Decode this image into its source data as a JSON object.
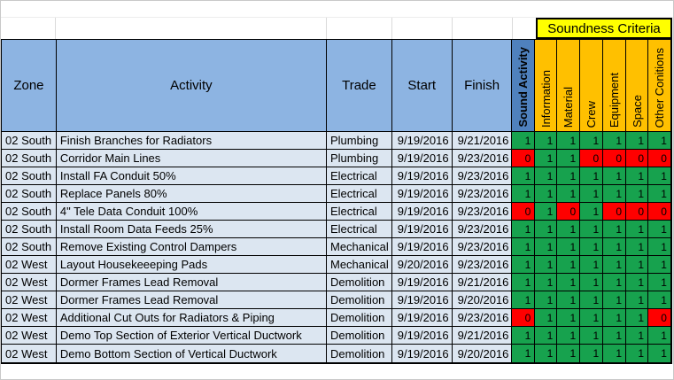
{
  "table": {
    "criteria_banner": "Soundness Criteria",
    "columns": [
      "Zone",
      "Activity",
      "Trade",
      "Start",
      "Finish"
    ],
    "criteria_columns": [
      "Sound Activity",
      "Information",
      "Material",
      "Crew",
      "Equipment",
      "Space",
      "Other Conitions"
    ],
    "rows": [
      {
        "zone": "02 South",
        "activity": "Finish Branches for Radiators",
        "trade": "Plumbing",
        "start": "9/19/2016",
        "finish": "9/21/2016",
        "criteria": [
          1,
          1,
          1,
          1,
          1,
          1,
          1
        ]
      },
      {
        "zone": "02 South",
        "activity": "Corridor Main Lines",
        "trade": "Plumbing",
        "start": "9/19/2016",
        "finish": "9/23/2016",
        "criteria": [
          0,
          1,
          1,
          0,
          0,
          0,
          0
        ]
      },
      {
        "zone": "02 South",
        "activity": "Install FA Conduit 50%",
        "trade": "Electrical",
        "start": "9/19/2016",
        "finish": "9/23/2016",
        "criteria": [
          1,
          1,
          1,
          1,
          1,
          1,
          1
        ]
      },
      {
        "zone": "02 South",
        "activity": "Replace Panels 80%",
        "trade": "Electrical",
        "start": "9/19/2016",
        "finish": "9/23/2016",
        "criteria": [
          1,
          1,
          1,
          1,
          1,
          1,
          1
        ]
      },
      {
        "zone": "02 South",
        "activity": "4\" Tele Data Conduit 100%",
        "trade": "Electrical",
        "start": "9/19/2016",
        "finish": "9/23/2016",
        "criteria": [
          0,
          1,
          0,
          1,
          0,
          0,
          0
        ]
      },
      {
        "zone": "02 South",
        "activity": "Install Room Data Feeds 25%",
        "trade": "Electrical",
        "start": "9/19/2016",
        "finish": "9/23/2016",
        "criteria": [
          1,
          1,
          1,
          1,
          1,
          1,
          1
        ]
      },
      {
        "zone": "02 South",
        "activity": "Remove Existing Control Dampers",
        "trade": "Mechanical",
        "start": "9/19/2016",
        "finish": "9/23/2016",
        "criteria": [
          1,
          1,
          1,
          1,
          1,
          1,
          1
        ]
      },
      {
        "zone": "02 West",
        "activity": "Layout Housekeeeping Pads",
        "trade": "Mechanical",
        "start": "9/20/2016",
        "finish": "9/23/2016",
        "criteria": [
          1,
          1,
          1,
          1,
          1,
          1,
          1
        ]
      },
      {
        "zone": "02 West",
        "activity": "Dormer Frames Lead Removal",
        "trade": "Demolition",
        "start": "9/19/2016",
        "finish": "9/21/2016",
        "criteria": [
          1,
          1,
          1,
          1,
          1,
          1,
          1
        ]
      },
      {
        "zone": "02 West",
        "activity": "Dormer Frames Lead Removal",
        "trade": "Demolition",
        "start": "9/19/2016",
        "finish": "9/20/2016",
        "criteria": [
          1,
          1,
          1,
          1,
          1,
          1,
          1
        ]
      },
      {
        "zone": "02 West",
        "activity": "Additional Cut Outs for Radiators & Piping",
        "trade": "Demolition",
        "start": "9/19/2016",
        "finish": "9/23/2016",
        "criteria": [
          0,
          1,
          1,
          1,
          1,
          1,
          0
        ]
      },
      {
        "zone": "02 West",
        "activity": "Demo Top Section of Exterior Vertical Ductwork",
        "trade": "Demolition",
        "start": "9/19/2016",
        "finish": "9/21/2016",
        "criteria": [
          1,
          1,
          1,
          1,
          1,
          1,
          1
        ]
      },
      {
        "zone": "02 West",
        "activity": "Demo Bottom Section of Vertical Ductwork",
        "trade": "Demolition",
        "start": "9/19/2016",
        "finish": "9/20/2016",
        "criteria": [
          1,
          1,
          1,
          1,
          1,
          1,
          1
        ]
      }
    ],
    "colors": {
      "header_blue": "#8DB4E2",
      "sound_activity_blue": "#4F81BD",
      "criteria_orange": "#FFC000",
      "banner_yellow": "#FFFF00",
      "row_blue": "#DCE6F1",
      "pass_green": "#17A24E",
      "fail_red": "#FF0000"
    }
  }
}
